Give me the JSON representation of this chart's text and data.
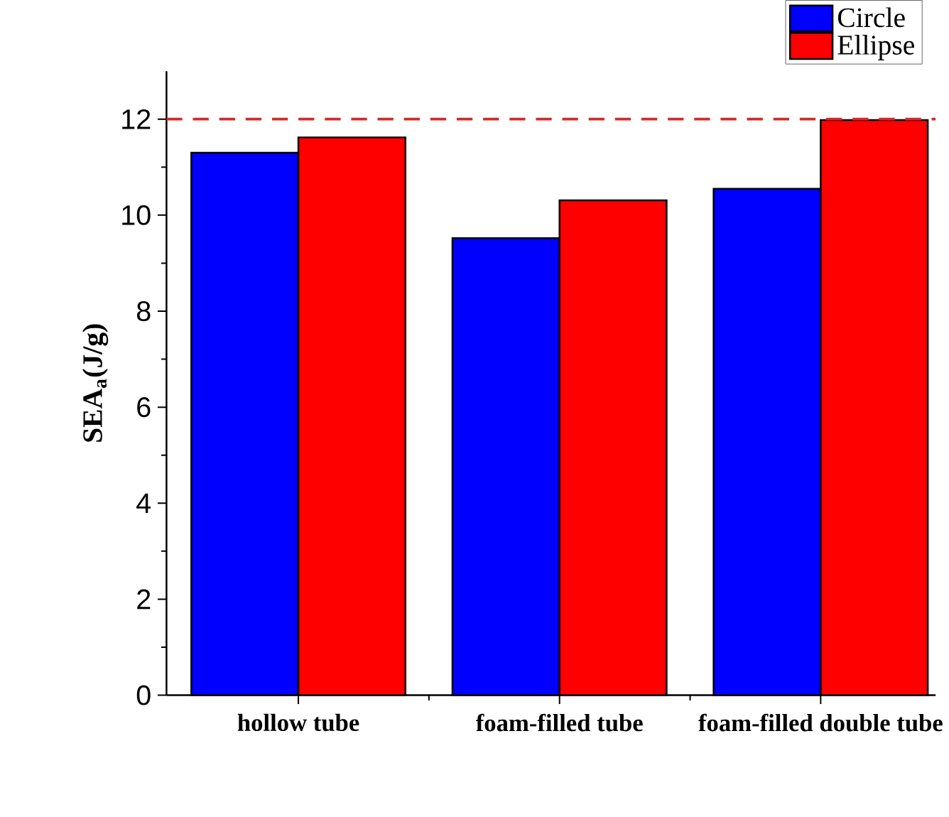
{
  "chart_data": {
    "type": "bar",
    "ylabel": "SEA$_{a}$(J/g)",
    "categories": [
      "hollow  tube",
      "foam-filled  tube",
      "foam-filled double tube"
    ],
    "series": [
      {
        "name": "Circle",
        "color": "#0000ff",
        "values": [
          11.3,
          9.52,
          10.55
        ]
      },
      {
        "name": "Ellipse",
        "color": "#ff0000",
        "values": [
          11.62,
          10.31,
          11.98
        ]
      }
    ],
    "ylim": [
      0,
      13
    ],
    "yticks": [
      0,
      2,
      4,
      6,
      8,
      10,
      12
    ],
    "ref_lines": [
      {
        "axis": "y",
        "value": 12,
        "color": "#d42a2a",
        "line_style": "dashed"
      }
    ],
    "legend": "top right",
    "grid": false
  }
}
